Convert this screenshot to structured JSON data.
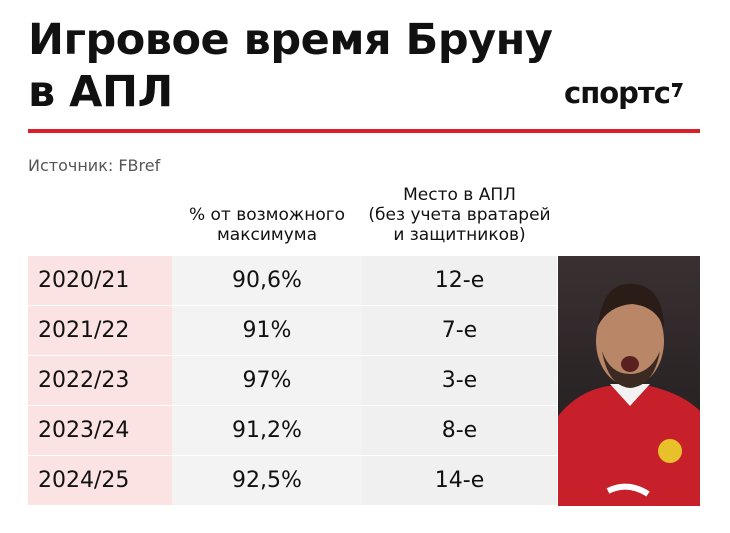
{
  "header": {
    "title_lines": [
      "Игровое время Бруну",
      "в АПЛ"
    ],
    "logo": "спортс",
    "source": "Источник: FBref"
  },
  "table": {
    "columns": [
      {
        "lines": [
          "% от возможного",
          "максимума"
        ]
      },
      {
        "lines": [
          "Место в АПЛ",
          "(без учета вратарей",
          "и защитников)"
        ]
      }
    ],
    "rows": [
      [
        "2020/21",
        "90,6%",
        "12-е"
      ],
      [
        "2021/22",
        "91%",
        "7-е"
      ],
      [
        "2022/23",
        "97%",
        "3-е"
      ],
      [
        "2023/24",
        "91,2%",
        "8-е"
      ],
      [
        "2024/25",
        "92,5%",
        "14-е"
      ]
    ]
  }
}
